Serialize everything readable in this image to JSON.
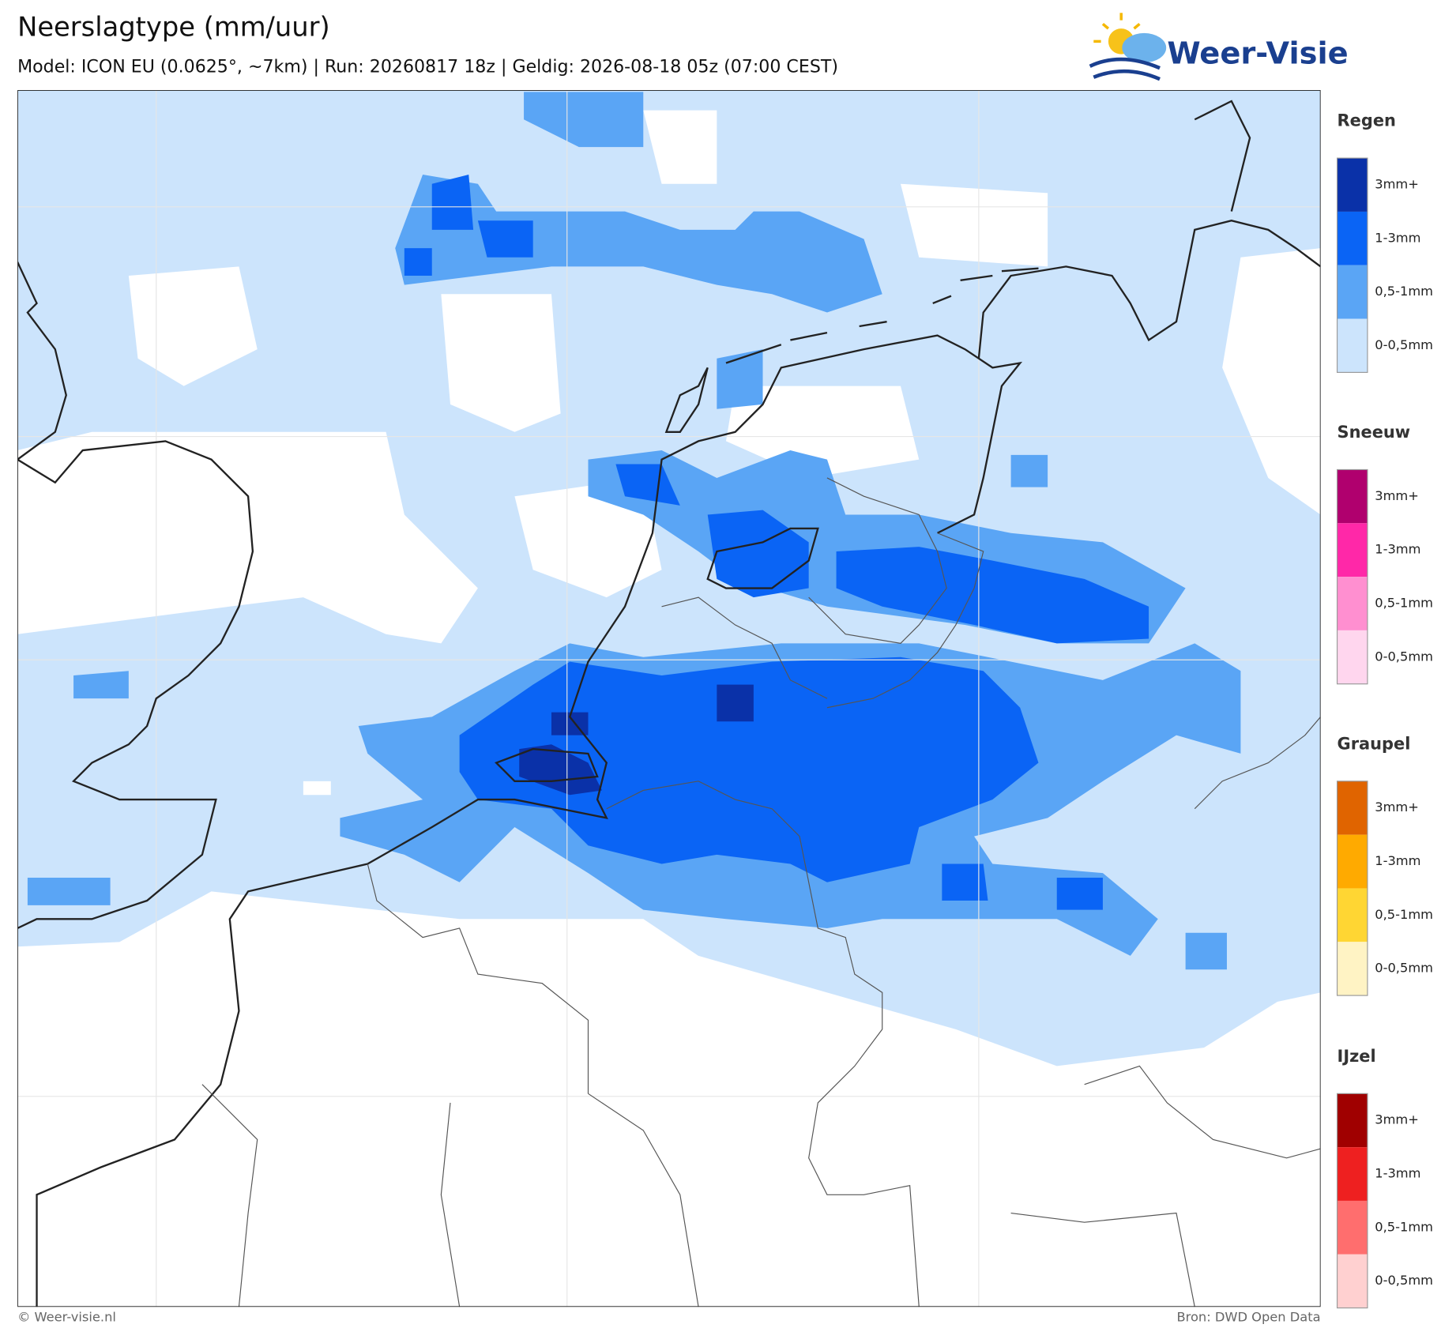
{
  "header": {
    "title": "Neerslagtype (mm/uur)",
    "subtitle": "Model: ICON EU (0.0625°, ~7km)  |  Run: 20260817 18z  |  Geldig: 2026-08-18 05z (07:00 CEST)"
  },
  "logo": {
    "text": "Weer-Visie"
  },
  "legend": [
    {
      "title": "Regen",
      "items": [
        {
          "label": "3mm+",
          "color": "#0a31a8"
        },
        {
          "label": "1-3mm",
          "color": "#0a64f5"
        },
        {
          "label": "0,5-1mm",
          "color": "#5aa5f5"
        },
        {
          "label": "0-0,5mm",
          "color": "#cce4fc"
        }
      ]
    },
    {
      "title": "Sneeuw",
      "items": [
        {
          "label": "3mm+",
          "color": "#b0006e"
        },
        {
          "label": "1-3mm",
          "color": "#ff28a8"
        },
        {
          "label": "0,5-1mm",
          "color": "#ff8fd0"
        },
        {
          "label": "0-0,5mm",
          "color": "#ffd6ee"
        }
      ]
    },
    {
      "title": "Graupel",
      "items": [
        {
          "label": "3mm+",
          "color": "#e06400"
        },
        {
          "label": "1-3mm",
          "color": "#ffaa00"
        },
        {
          "label": "0,5-1mm",
          "color": "#ffd633"
        },
        {
          "label": "0-0,5mm",
          "color": "#fff3c4"
        }
      ]
    },
    {
      "title": "IJzel",
      "items": [
        {
          "label": "3mm+",
          "color": "#a00000"
        },
        {
          "label": "1-3mm",
          "color": "#ee2020"
        },
        {
          "label": "0,5-1mm",
          "color": "#ff6e6e"
        },
        {
          "label": "0-0,5mm",
          "color": "#ffd0d0"
        }
      ]
    }
  ],
  "footer": {
    "left": "© Weer-visie.nl",
    "right": "Bron: DWD Open Data"
  }
}
